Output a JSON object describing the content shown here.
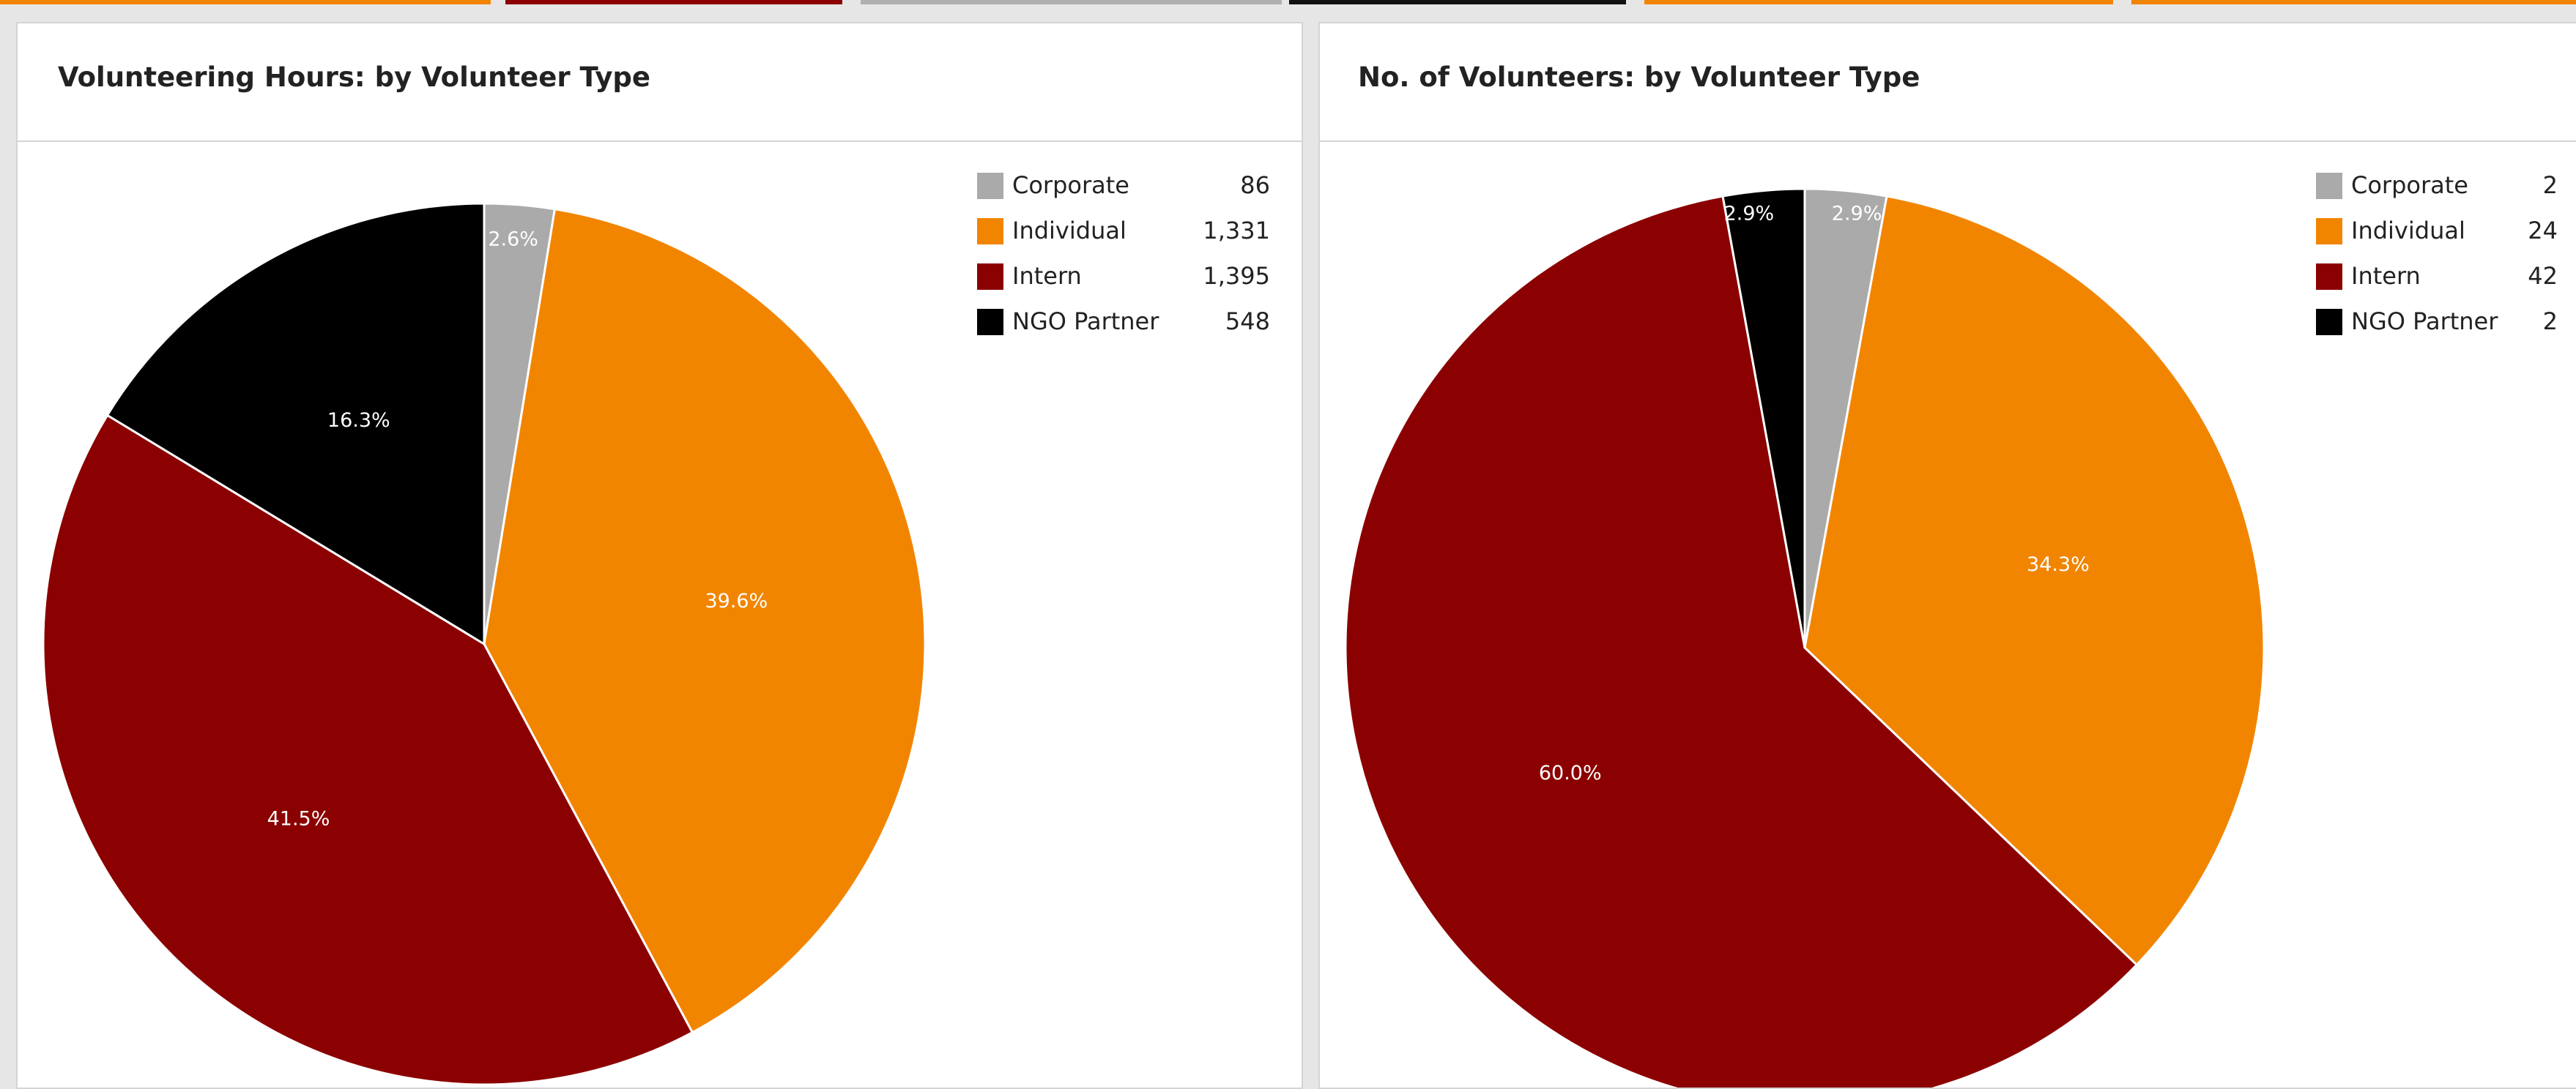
{
  "colors": {
    "Corporate": "#aaaaaa",
    "Individual": "#f28500",
    "Intern": "#8b0000",
    "NGO Partner": "#000000",
    "tab_orange": "#f28500",
    "tab_darkred": "#8b0000",
    "tab_gray": "#b0b0b0",
    "tab_black": "#111111"
  },
  "top_tabs": [
    "tab_orange",
    "tab_darkred",
    "tab_gray",
    "tab_black",
    "tab_orange",
    "tab_orange"
  ],
  "chart_data": [
    {
      "type": "pie",
      "title": "Volunteering Hours: by Volunteer Type",
      "categories": [
        "Corporate",
        "Individual",
        "Intern",
        "NGO Partner"
      ],
      "values": [
        86,
        1331,
        1395,
        548
      ],
      "value_labels": [
        "86",
        "1,331",
        "1,395",
        "548"
      ],
      "slice_labels": [
        "2.6%",
        "39.6%",
        "41.5%",
        "16.3%"
      ],
      "legend": "top-right"
    },
    {
      "type": "pie",
      "title": "No. of Volunteers: by Volunteer Type",
      "categories": [
        "Corporate",
        "Individual",
        "Intern",
        "NGO Partner"
      ],
      "values": [
        2,
        24,
        42,
        2
      ],
      "value_labels": [
        "2",
        "24",
        "42",
        "2"
      ],
      "slice_labels": [
        "2.9%",
        "34.3%",
        "60.0%",
        "2.9%"
      ],
      "legend": "top-right"
    }
  ]
}
